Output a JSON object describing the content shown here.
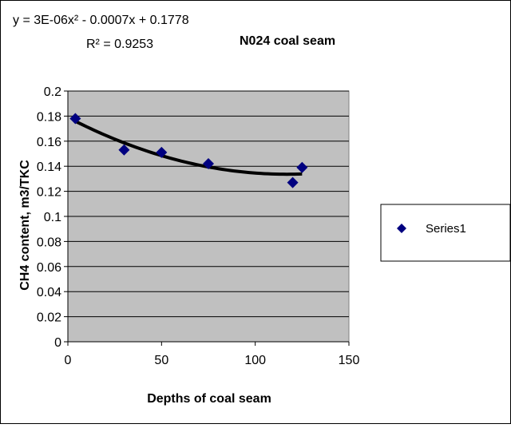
{
  "chart_data": {
    "type": "scatter",
    "title": "N024 coal seam",
    "xlabel": "Depths of coal seam",
    "ylabel": "CH4 content, m3/TKC",
    "xlim": [
      0,
      150
    ],
    "ylim": [
      0,
      0.2
    ],
    "xticks": [
      0,
      50,
      100,
      150
    ],
    "yticks": [
      0,
      0.02,
      0.04,
      0.06,
      0.08,
      0.1,
      0.12,
      0.14,
      0.16,
      0.18,
      0.2
    ],
    "xtick_labels": [
      "0",
      "50",
      "100",
      "150"
    ],
    "ytick_labels": [
      "0",
      "0.02",
      "0.04",
      "0.06",
      "0.08",
      "0.1",
      "0.12",
      "0.14",
      "0.16",
      "0.18",
      "0.2"
    ],
    "grid": "horizontal",
    "legend_position": "right",
    "series": [
      {
        "name": "Series1",
        "marker": "diamond",
        "color": "#000080",
        "x": [
          4,
          30,
          50,
          75,
          120,
          125
        ],
        "y": [
          0.178,
          0.153,
          0.151,
          0.142,
          0.127,
          0.139
        ]
      }
    ],
    "trendline": {
      "type": "polynomial-2",
      "color": "#000000",
      "x_range": [
        4,
        125
      ],
      "equation_text": "y = 3E-06x² - 0.0007x + 0.1778",
      "r2_text": "R² = 0.9253"
    },
    "colors": {
      "plot_area": "#c0c0c0",
      "gridline": "#000000",
      "marker": "#000080"
    }
  }
}
